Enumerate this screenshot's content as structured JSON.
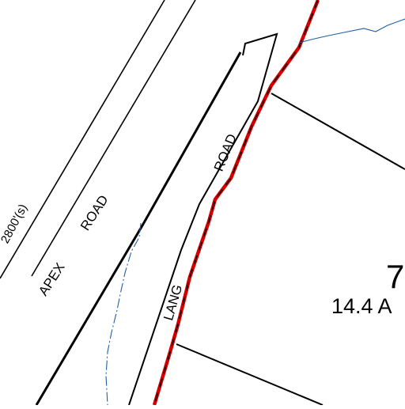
{
  "map": {
    "labels": {
      "road_apex_1": "APEX",
      "road_apex_2": "ROAD",
      "road_lang_1": "LANG",
      "road_lang_2": "ROAD",
      "dimension": "2800'(s)",
      "parcel_number": "7",
      "parcel_area": "14.4 A"
    },
    "colors": {
      "linework": "#000000",
      "boundary": "#d40000",
      "stream": "#1f5fa8",
      "background": "#ffffff"
    }
  }
}
